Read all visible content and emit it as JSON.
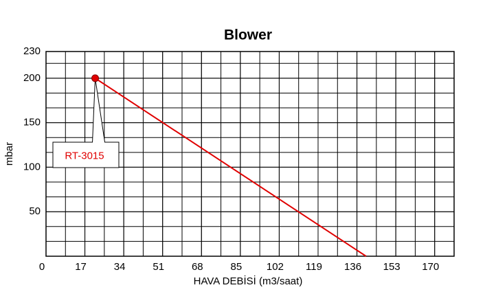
{
  "chart_data": {
    "type": "line",
    "title": "Blower",
    "x_label": "HAVA DEBİSİ (m3/saat)",
    "y_label": "mbar",
    "xlim": [
      0,
      178.5
    ],
    "xticks": [
      0,
      17,
      34,
      51,
      68,
      85,
      102,
      119,
      136,
      153,
      170
    ],
    "ylim": [
      0,
      230
    ],
    "yticks": [
      50,
      100,
      150,
      200,
      230
    ],
    "grid": true,
    "series": [
      {
        "name": "RT-3015",
        "color": "#e00000",
        "x": [
          21.5,
          140
        ],
        "values": [
          200,
          0
        ]
      }
    ]
  }
}
